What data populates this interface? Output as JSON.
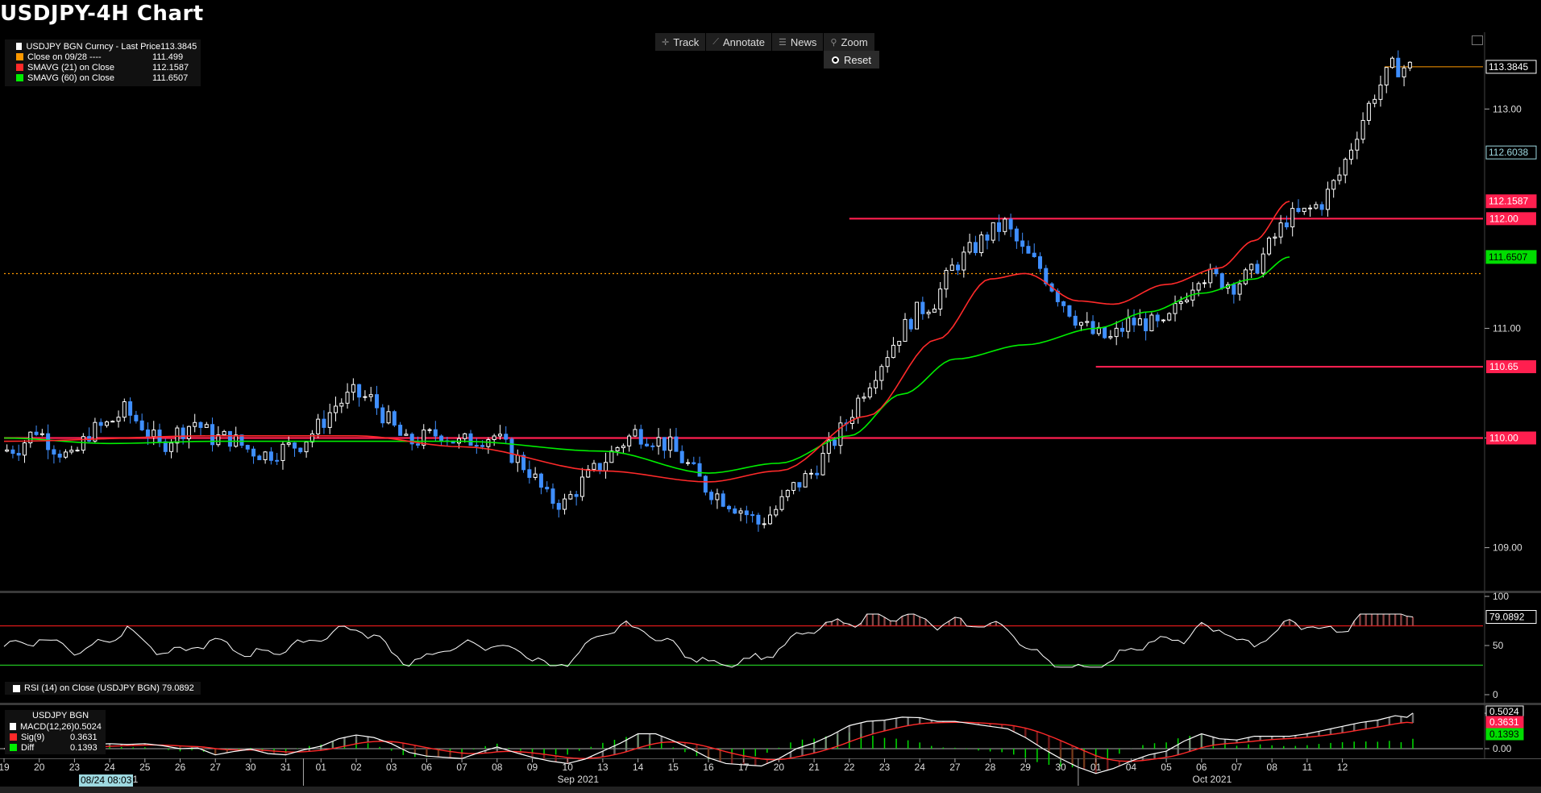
{
  "header": {
    "title": "USDJPY-4H Chart"
  },
  "legend": {
    "items": [
      {
        "label": "USDJPY BGN Curncy - Last Price",
        "value": "113.3845",
        "color": "#ffffff"
      },
      {
        "label": "Close on 09/28 ----",
        "value": "111.499",
        "color": "#ff9900"
      },
      {
        "label": "SMAVG (21)  on Close",
        "value": "112.1587",
        "color": "#ff2a2a"
      },
      {
        "label": "SMAVG (60)  on Close",
        "value": "111.6507",
        "color": "#00ee00"
      }
    ]
  },
  "toolbar": {
    "track": "Track",
    "annotate": "Annotate",
    "news": "News",
    "zoom": "Zoom",
    "reset": "Reset"
  },
  "rsi_legend": {
    "label": "RSI (14)  on Close (USDJPY BGN)",
    "value": "79.0892"
  },
  "macd_legend": {
    "header": "USDJPY BGN",
    "items": [
      {
        "label": "MACD(12,26)",
        "value": "0.5024",
        "color": "#ffffff"
      },
      {
        "label": "Sig(9)",
        "value": "0.3631",
        "color": "#ff2a2a"
      },
      {
        "label": "Diff",
        "value": "0.1393",
        "color": "#00ee00"
      }
    ]
  },
  "cursor_date": "08/24 08:03",
  "chart_data": {
    "type": "candlestick",
    "title": "USDJPY-4H Chart",
    "ylim": [
      108.6,
      113.7
    ],
    "yticks": [
      109.0,
      110.0,
      111.0,
      113.0
    ],
    "x_tick_labels": [
      "19",
      "20",
      "23",
      "24",
      "25",
      "26",
      "27",
      "30",
      "31",
      "01",
      "02",
      "03",
      "06",
      "07",
      "08",
      "09",
      "10",
      "13",
      "14",
      "15",
      "16",
      "17",
      "20",
      "21",
      "22",
      "23",
      "24",
      "27",
      "28",
      "29",
      "30",
      "01",
      "04",
      "05",
      "06",
      "07",
      "08",
      "11",
      "12"
    ],
    "month_labels": [
      {
        "label": "2021",
        "after": "24"
      },
      {
        "label": "Sep 2021",
        "after": "16"
      },
      {
        "label": "Oct 2021",
        "after": "06"
      }
    ],
    "horizontal_levels": [
      {
        "value": 112.0,
        "label": "112.00",
        "color": "#ff1f4f",
        "start_day": 24.0
      },
      {
        "value": 110.65,
        "label": "110.65",
        "color": "#ff1f4f",
        "start_day": 31.0
      },
      {
        "value": 110.0,
        "label": "110.00",
        "color": "#ff1f4f",
        "start_day": 0
      },
      {
        "value": 111.499,
        "label": "",
        "color": "#ff9900",
        "dotted": true,
        "start_day": 0
      }
    ],
    "price_tags": [
      {
        "value": 113.3845,
        "label": "113.3845",
        "style": "last"
      },
      {
        "value": 112.6038,
        "label": "112.6038",
        "style": "cursor"
      },
      {
        "value": 112.1587,
        "label": "112.1587",
        "style": "red"
      },
      {
        "value": 111.6507,
        "label": "111.6507",
        "style": "green"
      }
    ],
    "daily_closes": [
      109.88,
      109.92,
      110.08,
      109.92,
      109.8,
      110.05,
      110.12,
      110.25,
      110.12,
      109.92,
      110.05,
      110.15,
      110.0,
      110.0,
      109.9,
      109.85,
      109.9,
      109.95,
      110.1,
      110.3,
      110.4,
      110.35,
      110.15,
      109.95,
      110.0,
      110.05,
      109.95,
      110.0,
      110.02,
      109.85,
      109.7,
      109.45,
      109.4,
      109.6,
      109.75,
      109.92,
      110.05,
      110.0,
      109.92,
      109.75,
      109.55,
      109.45,
      109.35,
      109.22,
      109.35,
      109.55,
      109.68,
      109.9,
      110.15,
      110.45,
      110.7,
      110.95,
      111.15,
      111.25,
      111.55,
      111.7,
      111.85,
      111.95,
      111.7,
      111.55,
      111.3,
      111.1,
      110.95,
      110.9,
      111.05,
      111.05,
      111.0,
      111.25,
      111.5,
      111.45,
      111.4,
      111.5,
      111.75,
      112.0,
      112.05,
      112.15,
      112.4,
      112.8,
      113.15,
      113.38
    ],
    "sma21_anchors": [
      [
        0,
        109.97
      ],
      [
        6,
        110.02
      ],
      [
        10,
        110.02
      ],
      [
        13,
        109.92
      ],
      [
        17,
        109.7
      ],
      [
        20,
        109.6
      ],
      [
        22,
        109.7
      ],
      [
        24.5,
        110.2
      ],
      [
        26.5,
        110.9
      ],
      [
        28,
        111.45
      ],
      [
        29,
        111.5
      ],
      [
        30.5,
        111.25
      ],
      [
        31.5,
        111.22
      ],
      [
        33,
        111.4
      ],
      [
        34.5,
        111.55
      ],
      [
        35.5,
        111.8
      ],
      [
        36.5,
        112.1587
      ]
    ],
    "sma60_anchors": [
      [
        0,
        110.0
      ],
      [
        3,
        109.95
      ],
      [
        6,
        109.97
      ],
      [
        9,
        109.97
      ],
      [
        13,
        109.97
      ],
      [
        17,
        109.88
      ],
      [
        20,
        109.68
      ],
      [
        22,
        109.77
      ],
      [
        24,
        110.02
      ],
      [
        25.5,
        110.4
      ],
      [
        27,
        110.72
      ],
      [
        29,
        110.85
      ],
      [
        31,
        111.0
      ],
      [
        32.5,
        111.15
      ],
      [
        34,
        111.32
      ],
      [
        35.5,
        111.45
      ],
      [
        36.5,
        111.6507
      ]
    ],
    "rsi": {
      "value": 79.0892,
      "ylim": [
        0,
        100
      ],
      "yticks": [
        0,
        50,
        100
      ],
      "overbought": 70,
      "oversold": 30
    },
    "macd": {
      "macd": 0.5024,
      "signal": 0.3631,
      "diff": 0.1393,
      "yticks": [
        0.0,
        0.5
      ]
    }
  }
}
